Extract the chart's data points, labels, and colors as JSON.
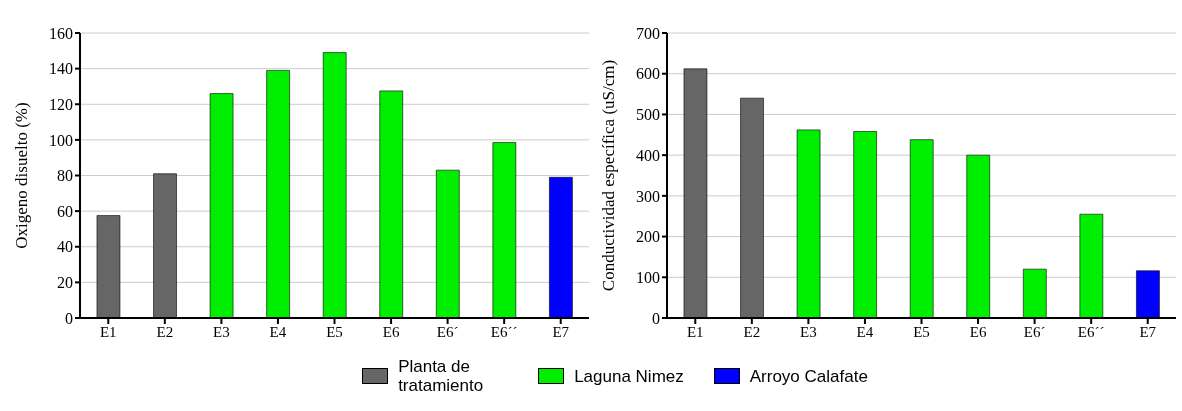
{
  "chart_data": [
    {
      "type": "bar",
      "ylabel": "Oxigeno disuelto (%)",
      "categories": [
        "E1",
        "E2",
        "E3",
        "E4",
        "E5",
        "E6",
        "E6´",
        "E6´´",
        "E7"
      ],
      "stacked": true,
      "series": [
        {
          "name": "Planta de tratamiento",
          "color": "#666666",
          "values": [
            57.5,
            81,
            null,
            null,
            null,
            null,
            null,
            null,
            null
          ]
        },
        {
          "name": "Laguna Nimez",
          "color": "#00ee00",
          "values": [
            null,
            null,
            126,
            139,
            149,
            127.5,
            83,
            98.5,
            null
          ]
        },
        {
          "name": "Arroyo Calafate",
          "color": "#0000ff",
          "values": [
            null,
            null,
            null,
            null,
            null,
            null,
            null,
            null,
            79
          ]
        }
      ],
      "ylim": [
        0,
        160
      ],
      "yticks": [
        0,
        20,
        40,
        60,
        80,
        100,
        120,
        140,
        160
      ],
      "grid": "y",
      "legend": "bottom"
    },
    {
      "type": "bar",
      "ylabel": "Conductividad específica (uS/cm)",
      "categories": [
        "E1",
        "E2",
        "E3",
        "E4",
        "E5",
        "E6",
        "E6´",
        "E6´´",
        "E7"
      ],
      "stacked": true,
      "series": [
        {
          "name": "Planta de tratamiento",
          "color": "#666666",
          "values": [
            612,
            540,
            null,
            null,
            null,
            null,
            null,
            null,
            null
          ]
        },
        {
          "name": "Laguna Nimez",
          "color": "#00ee00",
          "values": [
            null,
            null,
            462,
            458,
            438,
            400,
            120,
            255,
            null
          ]
        },
        {
          "name": "Arroyo Calafate",
          "color": "#0000ff",
          "values": [
            null,
            null,
            null,
            null,
            null,
            null,
            null,
            null,
            116
          ]
        }
      ],
      "ylim": [
        0,
        700
      ],
      "yticks": [
        0,
        100,
        200,
        300,
        400,
        500,
        600,
        700
      ],
      "grid": "y"
    }
  ]
}
